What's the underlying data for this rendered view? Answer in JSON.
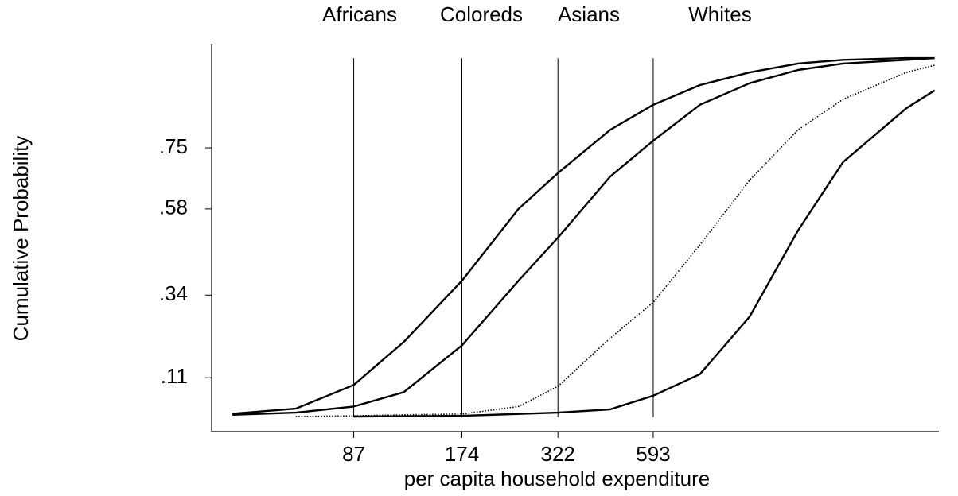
{
  "chart_data": {
    "type": "line",
    "x_label": "per capita household expenditure",
    "y_label": "Cumulative Probability",
    "xscale": "log",
    "xlim": [
      35,
      3700
    ],
    "ylim": [
      -0.04,
      1.04
    ],
    "xticks": [
      87,
      174,
      322,
      593
    ],
    "yticks": [
      {
        "value": 0.11,
        "label": ".11"
      },
      {
        "value": 0.34,
        "label": ".34"
      },
      {
        "value": 0.58,
        "label": ".58"
      },
      {
        "value": 0.75,
        "label": ".75"
      }
    ],
    "reference_lines": true,
    "series": [
      {
        "name": "Africans",
        "color": "#000000",
        "style": "solid",
        "x": [
          40,
          60,
          87,
          120,
          174,
          250,
          322,
          450,
          593,
          800,
          1100,
          1500,
          2000,
          3000,
          3600
        ],
        "values": [
          0.01,
          0.024,
          0.09,
          0.21,
          0.38,
          0.58,
          0.68,
          0.8,
          0.87,
          0.925,
          0.96,
          0.985,
          0.995,
          1.0,
          1.0
        ]
      },
      {
        "name": "Coloreds",
        "color": "#000000",
        "style": "solid",
        "x": [
          40,
          60,
          87,
          120,
          174,
          250,
          322,
          450,
          593,
          800,
          1100,
          1500,
          2000,
          3000,
          3600
        ],
        "values": [
          0.007,
          0.013,
          0.03,
          0.07,
          0.2,
          0.38,
          0.5,
          0.67,
          0.77,
          0.87,
          0.93,
          0.967,
          0.985,
          0.995,
          1.0
        ]
      },
      {
        "name": "Asians",
        "color": "#000000",
        "style": "dotted",
        "x": [
          60,
          87,
          120,
          174,
          250,
          322,
          450,
          593,
          800,
          1100,
          1500,
          2000,
          3000,
          3600
        ],
        "values": [
          0.002,
          0.004,
          0.007,
          0.009,
          0.03,
          0.086,
          0.22,
          0.32,
          0.48,
          0.66,
          0.8,
          0.885,
          0.96,
          0.98
        ]
      },
      {
        "name": "Whites",
        "color": "#000000",
        "style": "solid",
        "x": [
          87,
          174,
          322,
          450,
          593,
          800,
          1100,
          1500,
          2000,
          3000,
          3600
        ],
        "values": [
          0.002,
          0.004,
          0.013,
          0.022,
          0.06,
          0.12,
          0.28,
          0.52,
          0.71,
          0.86,
          0.91
        ]
      }
    ]
  }
}
